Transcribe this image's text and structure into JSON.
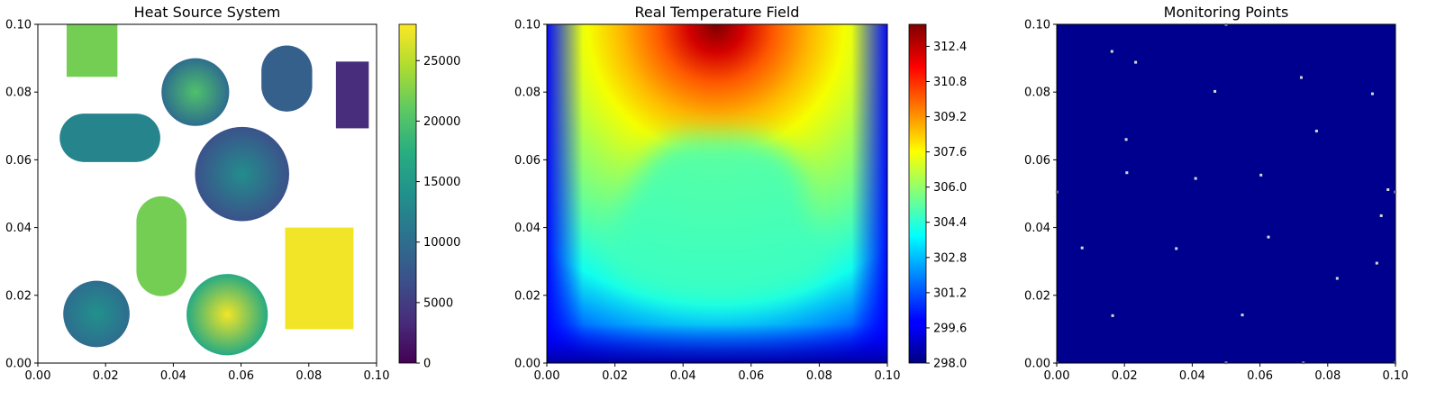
{
  "chart_data": [
    {
      "type": "heatmap",
      "title": "Heat Source System",
      "xlim": [
        0,
        0.1
      ],
      "ylim": [
        0,
        0.1
      ],
      "xticks": [
        "0.00",
        "0.02",
        "0.04",
        "0.06",
        "0.08",
        "0.10"
      ],
      "yticks": [
        "0.00",
        "0.02",
        "0.04",
        "0.06",
        "0.08",
        "0.10"
      ],
      "colormap": "viridis",
      "colorbar": {
        "min": 0,
        "max": 28000,
        "ticks": [
          "0",
          "5000",
          "10000",
          "15000",
          "20000",
          "25000"
        ]
      },
      "background": "#ffffff",
      "sources": [
        {
          "shape": "rect",
          "x0": 0.0085,
          "x1": 0.0235,
          "y0": 0.0845,
          "y1": 0.1,
          "value": 22000
        },
        {
          "shape": "circle",
          "cx": 0.0465,
          "cy": 0.08,
          "r": 0.01,
          "value_center": 20000,
          "value_edge": 10000
        },
        {
          "shape": "stadium-vertical",
          "cx": 0.0735,
          "cy": 0.084,
          "w": 0.015,
          "h": 0.0195,
          "value": 8500
        },
        {
          "shape": "rect",
          "x0": 0.088,
          "x1": 0.0977,
          "y0": 0.0693,
          "y1": 0.089,
          "value": 3500
        },
        {
          "shape": "stadium-horizontal",
          "cx": 0.0213,
          "cy": 0.0665,
          "w": 0.0297,
          "h": 0.0143,
          "value": 12500
        },
        {
          "shape": "circle",
          "cx": 0.0603,
          "cy": 0.0558,
          "r": 0.0139,
          "value_center": 13500,
          "value_edge": 7000
        },
        {
          "shape": "stadium-vertical",
          "cx": 0.0365,
          "cy": 0.0345,
          "w": 0.0148,
          "h": 0.0295,
          "value": 22000
        },
        {
          "shape": "rect",
          "x0": 0.073,
          "x1": 0.0932,
          "y0": 0.01,
          "y1": 0.04,
          "value": 27500
        },
        {
          "shape": "circle",
          "cx": 0.0173,
          "cy": 0.0145,
          "r": 0.0098,
          "value_center": 14000,
          "value_edge": 10000
        },
        {
          "shape": "circle",
          "cx": 0.0559,
          "cy": 0.0143,
          "r": 0.012,
          "value_center": 27500,
          "value_edge": 17000
        }
      ]
    },
    {
      "type": "heatmap",
      "title": "Real Temperature Field",
      "xlim": [
        0,
        0.1
      ],
      "ylim": [
        0,
        0.1
      ],
      "xticks": [
        "0.00",
        "0.02",
        "0.04",
        "0.06",
        "0.08",
        "0.10"
      ],
      "yticks": [
        "0.00",
        "0.02",
        "0.04",
        "0.06",
        "0.08",
        "0.10"
      ],
      "colormap": "jet",
      "colorbar": {
        "min": 298.0,
        "max": 313.4,
        "ticks": [
          "298.0",
          "299.6",
          "301.2",
          "302.8",
          "304.4",
          "306.0",
          "307.6",
          "309.2",
          "310.8",
          "312.4"
        ]
      },
      "field_peak": {
        "x": 0.05,
        "y": 0.1,
        "value": 313.4
      },
      "field_floor": 298.0
    },
    {
      "type": "scatter",
      "title": "Monitoring Points",
      "xlim": [
        0,
        0.1
      ],
      "ylim": [
        0,
        0.1
      ],
      "xticks": [
        "0.00",
        "0.02",
        "0.04",
        "0.06",
        "0.08",
        "0.10"
      ],
      "yticks": [
        "0.00",
        "0.02",
        "0.04",
        "0.06",
        "0.08",
        "0.10"
      ],
      "background": "#00008f",
      "point_color": "#d8d8d8",
      "points": [
        [
          0.0,
          0.0505
        ],
        [
          0.0,
          0.0
        ],
        [
          0.0075,
          0.034
        ],
        [
          0.0163,
          0.092
        ],
        [
          0.0165,
          0.014
        ],
        [
          0.0205,
          0.066
        ],
        [
          0.0207,
          0.0562
        ],
        [
          0.0233,
          0.0888
        ],
        [
          0.0353,
          0.0338
        ],
        [
          0.041,
          0.0545
        ],
        [
          0.0467,
          0.0802
        ],
        [
          0.05,
          0.1
        ],
        [
          0.05,
          0.0
        ],
        [
          0.0548,
          0.0142
        ],
        [
          0.0603,
          0.0555
        ],
        [
          0.0625,
          0.0372
        ],
        [
          0.0722,
          0.0843
        ],
        [
          0.0728,
          0.0
        ],
        [
          0.0767,
          0.0685
        ],
        [
          0.0828,
          0.025
        ],
        [
          0.0932,
          0.0795
        ],
        [
          0.0945,
          0.0295
        ],
        [
          0.0958,
          0.0435
        ],
        [
          0.0978,
          0.0512
        ],
        [
          0.1,
          0.0505
        ],
        [
          0.1,
          0.0
        ]
      ]
    }
  ]
}
